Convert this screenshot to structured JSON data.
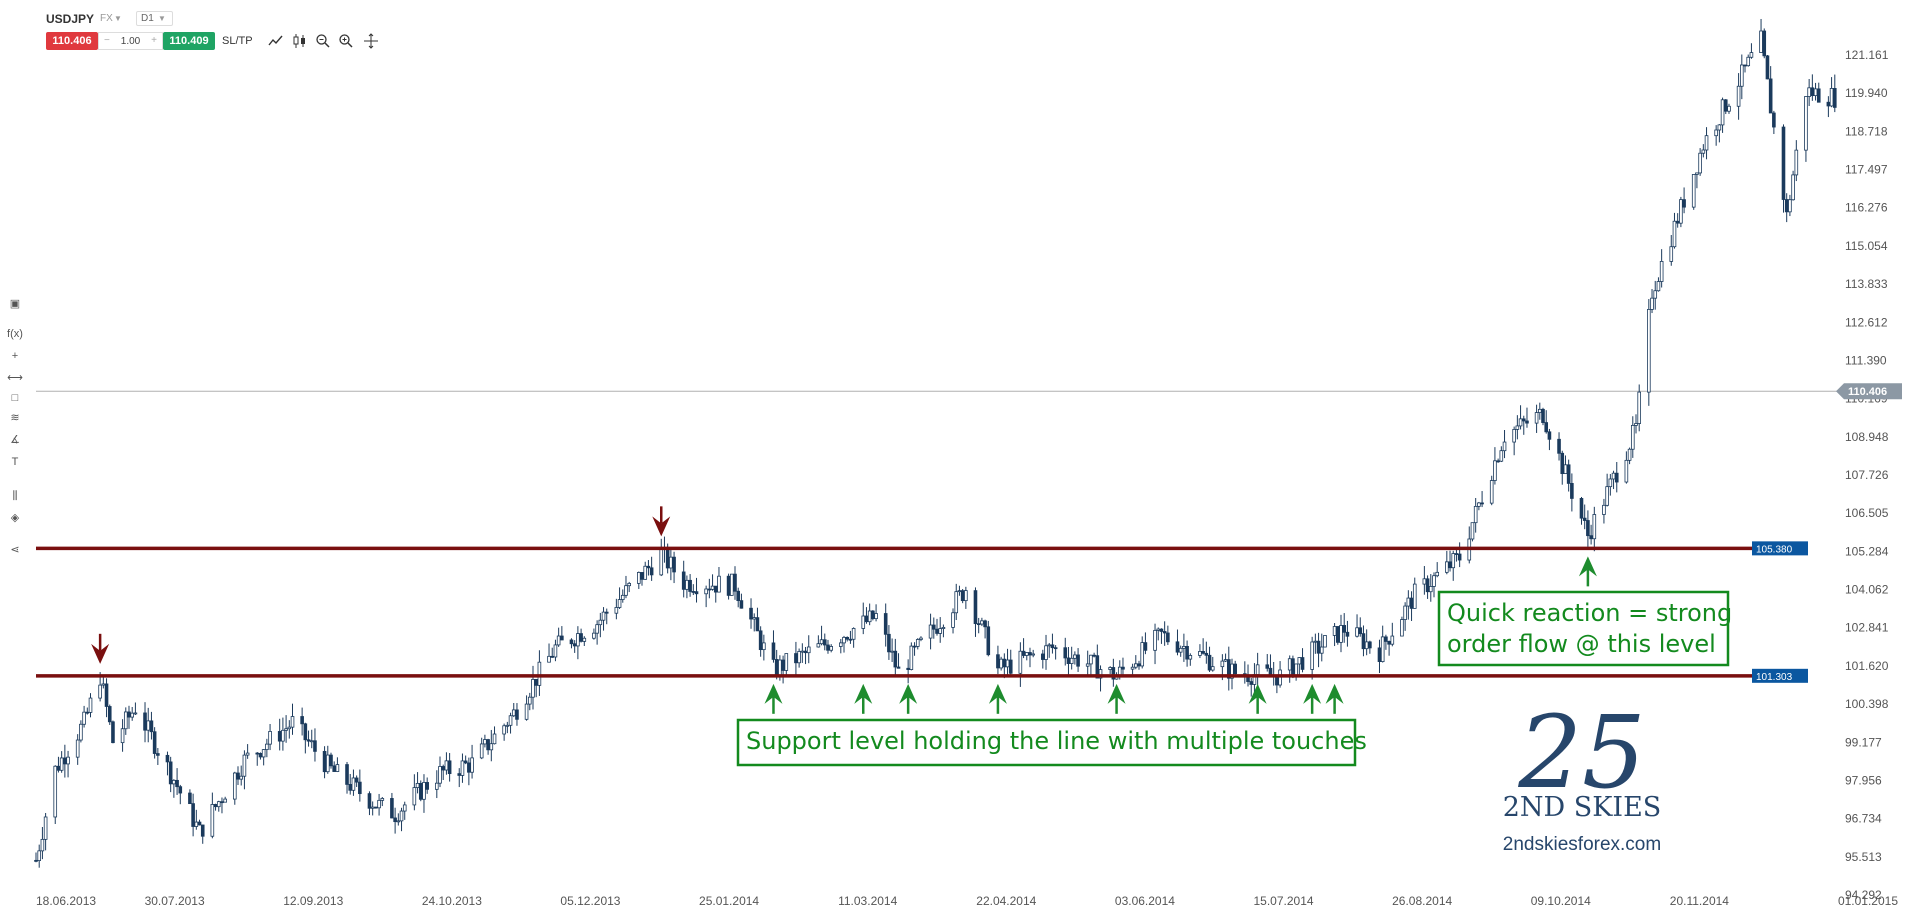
{
  "toolbar": {
    "symbol": "USDJPY",
    "market": "FX",
    "timeframe": "D1",
    "bid": "110.406",
    "quantity": "1.00",
    "ask": "110.409",
    "sltp_label": "SL/TP",
    "minus": "−",
    "plus": "+"
  },
  "sidebar": {
    "fx_label": "f(x)",
    "text_tool_label": "T"
  },
  "colors": {
    "candle": "#1b3a5c",
    "level_line": "#7a0f0f",
    "arrow_down": "#7a0f0f",
    "arrow_up": "#1e8c2e",
    "annotation": "#138a1e",
    "price_tag": "#0b57a0",
    "current_tag": "#8c98a4",
    "logo": "#27466b"
  },
  "chart_data": {
    "type": "candlestick",
    "symbol": "USDJPY",
    "timeframe": "D1",
    "x_tick_labels": [
      "18.06.2013",
      "30.07.2013",
      "12.09.2013",
      "24.10.2013",
      "05.12.2013",
      "25.01.2014",
      "11.03.2014",
      "22.04.2014",
      "03.06.2014",
      "15.07.2014",
      "26.08.2014",
      "09.10.2014",
      "20.11.2014",
      "01.01.2015"
    ],
    "y_tick_labels": [
      "121.161",
      "119.940",
      "118.718",
      "117.497",
      "116.276",
      "115.054",
      "113.833",
      "112.612",
      "111.390",
      "110.169",
      "108.948",
      "107.726",
      "106.505",
      "105.284",
      "104.062",
      "102.841",
      "101.620",
      "100.398",
      "99.177",
      "97.956",
      "96.734",
      "95.513",
      "94.292"
    ],
    "ylim": [
      94.292,
      121.161
    ],
    "x_range": [
      "2013-06-18",
      "2015-01-01"
    ],
    "current_price": "110.406",
    "levels": [
      {
        "price": "105.380",
        "role": "resistance turned support"
      },
      {
        "price": "101.303",
        "role": "support"
      }
    ],
    "approx_close_path": [
      {
        "date": "2013-06-18",
        "close": 95.4
      },
      {
        "date": "2013-06-24",
        "close": 98.3
      },
      {
        "date": "2013-07-03",
        "close": 99.8
      },
      {
        "date": "2013-07-08",
        "close": 101.3
      },
      {
        "date": "2013-07-12",
        "close": 99.2
      },
      {
        "date": "2013-07-19",
        "close": 100.3
      },
      {
        "date": "2013-07-31",
        "close": 98.0
      },
      {
        "date": "2013-08-08",
        "close": 96.3
      },
      {
        "date": "2013-08-22",
        "close": 98.6
      },
      {
        "date": "2013-09-06",
        "close": 99.8
      },
      {
        "date": "2013-09-18",
        "close": 98.3
      },
      {
        "date": "2013-10-02",
        "close": 97.2
      },
      {
        "date": "2013-10-08",
        "close": 96.9
      },
      {
        "date": "2013-10-22",
        "close": 98.2
      },
      {
        "date": "2013-11-01",
        "close": 98.5
      },
      {
        "date": "2013-11-14",
        "close": 100.1
      },
      {
        "date": "2013-11-27",
        "close": 102.2
      },
      {
        "date": "2013-12-10",
        "close": 103.0
      },
      {
        "date": "2013-12-30",
        "close": 105.2
      },
      {
        "date": "2014-01-06",
        "close": 104.3
      },
      {
        "date": "2014-01-22",
        "close": 104.2
      },
      {
        "date": "2014-02-03",
        "close": 101.5
      },
      {
        "date": "2014-02-17",
        "close": 102.2
      },
      {
        "date": "2014-03-07",
        "close": 103.2
      },
      {
        "date": "2014-03-14",
        "close": 101.4
      },
      {
        "date": "2014-04-04",
        "close": 104.1
      },
      {
        "date": "2014-04-14",
        "close": 101.5
      },
      {
        "date": "2014-05-01",
        "close": 102.2
      },
      {
        "date": "2014-05-21",
        "close": 101.3
      },
      {
        "date": "2014-06-04",
        "close": 102.6
      },
      {
        "date": "2014-06-27",
        "close": 101.4
      },
      {
        "date": "2014-07-11",
        "close": 101.3
      },
      {
        "date": "2014-07-31",
        "close": 102.8
      },
      {
        "date": "2014-08-11",
        "close": 102.1
      },
      {
        "date": "2014-08-22",
        "close": 103.9
      },
      {
        "date": "2014-09-05",
        "close": 105.1
      },
      {
        "date": "2014-09-19",
        "close": 109.0
      },
      {
        "date": "2014-10-01",
        "close": 109.7
      },
      {
        "date": "2014-10-15",
        "close": 105.8
      },
      {
        "date": "2014-10-30",
        "close": 109.2
      },
      {
        "date": "2014-11-04",
        "close": 113.6
      },
      {
        "date": "2014-11-20",
        "close": 118.3
      },
      {
        "date": "2014-12-08",
        "close": 121.6
      },
      {
        "date": "2014-12-16",
        "close": 116.0
      },
      {
        "date": "2014-12-22",
        "close": 120.0
      },
      {
        "date": "2015-01-01",
        "close": 119.8
      }
    ],
    "arrows_down": [
      "2013-07-08",
      "2013-12-30"
    ],
    "arrows_up": [
      "2014-02-03",
      "2014-03-03",
      "2014-03-17",
      "2014-04-14",
      "2014-05-21",
      "2014-07-04",
      "2014-07-21",
      "2014-07-28",
      "2014-10-15"
    ],
    "annotations": [
      "Support level holding the line with multiple touches",
      "Quick reaction = strong",
      "order flow @ this level"
    ],
    "grid": false
  },
  "logo": {
    "mark": "25",
    "name": "2ND SKIES",
    "url": "2ndskiesforex.com"
  }
}
